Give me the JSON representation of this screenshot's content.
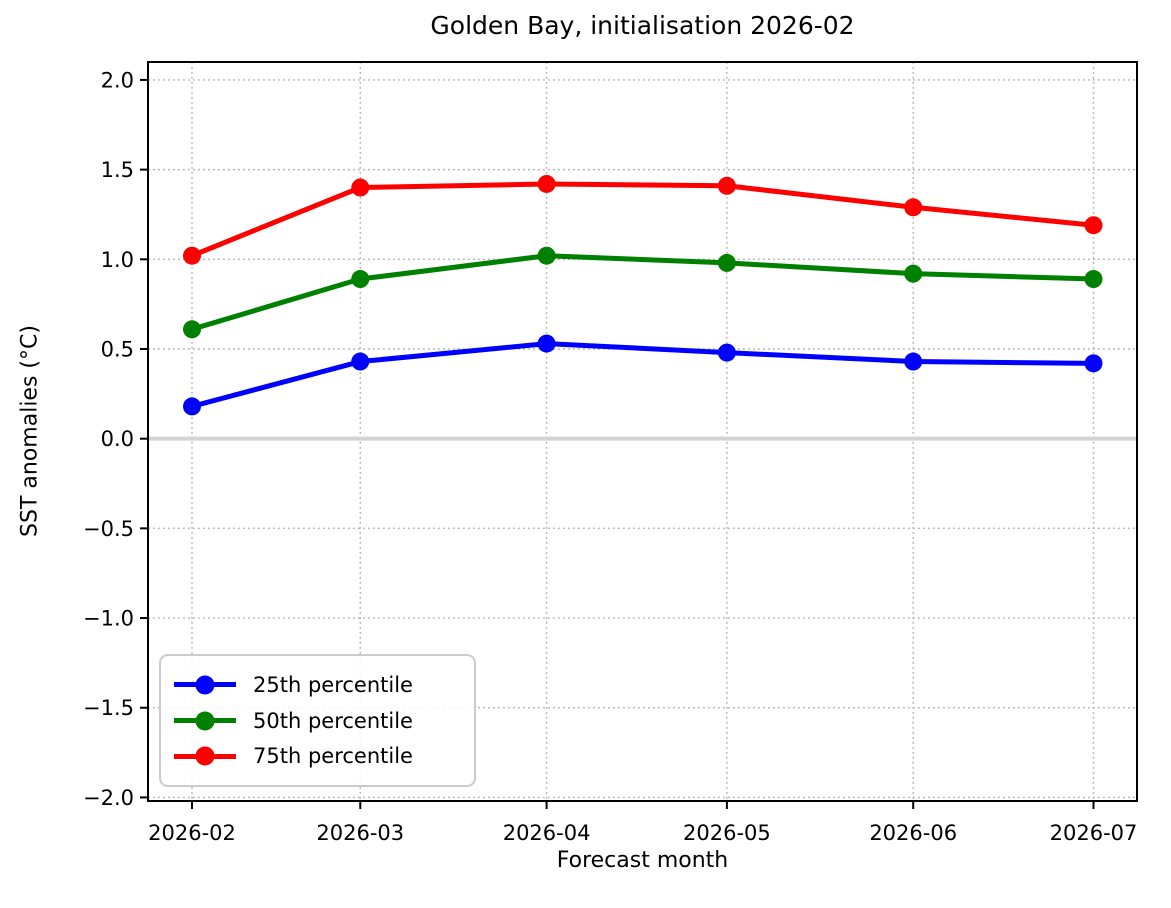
{
  "title": "Golden Bay, initialisation 2026-02",
  "axes": {
    "xlabel": "Forecast month",
    "ylabel": "SST anomalies (°C)",
    "ytick_values": [
      2.0,
      1.5,
      1.0,
      0.5,
      0.0,
      -0.5,
      -1.0,
      -1.5,
      -2.0
    ],
    "ytick_labels": [
      "2.0",
      "1.5",
      "1.0",
      "0.5",
      "0.0",
      "−0.5",
      "−1.0",
      "−1.5",
      "−2.0"
    ],
    "xtick_labels": [
      "2026-02",
      "2026-03",
      "2026-04",
      "2026-05",
      "2026-06",
      "2026-07"
    ]
  },
  "chart_data": {
    "type": "line",
    "title": "Golden Bay, initialisation 2026-02",
    "xlabel": "Forecast month",
    "ylabel": "SST anomalies (°C)",
    "x": [
      "2026-02",
      "2026-03",
      "2026-04",
      "2026-05",
      "2026-06",
      "2026-07"
    ],
    "x_day_offsets": [
      0,
      28,
      59,
      89,
      120,
      150
    ],
    "series": [
      {
        "name": "25th percentile",
        "color": "#0000ff",
        "values": [
          0.18,
          0.43,
          0.53,
          0.48,
          0.43,
          0.42
        ]
      },
      {
        "name": "50th percentile",
        "color": "#008000",
        "values": [
          0.61,
          0.89,
          1.02,
          0.98,
          0.92,
          0.89
        ]
      },
      {
        "name": "75th percentile",
        "color": "#ff0000",
        "values": [
          1.02,
          1.4,
          1.42,
          1.41,
          1.29,
          1.19
        ]
      }
    ],
    "ylim": [
      -2.02,
      2.1
    ],
    "grid": true,
    "grid_style": "dotted",
    "grid_color": "#b0b0b0",
    "zero_line_color": "#d3d3d3",
    "legend_position": "lower left",
    "marker": "circle"
  }
}
